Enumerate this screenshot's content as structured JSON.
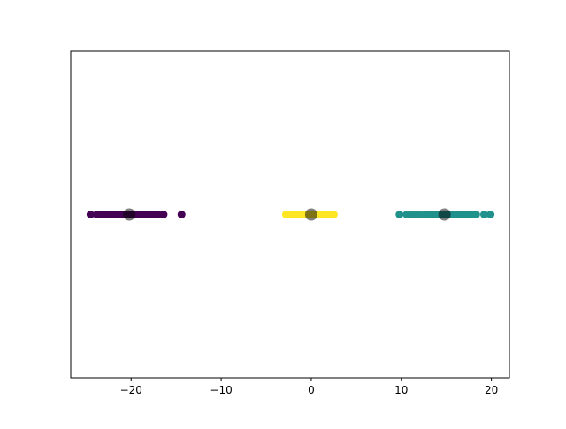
{
  "chart_data": {
    "type": "scatter",
    "title": "",
    "xlabel": "",
    "ylabel": "",
    "xlim": [
      -26.7,
      22.0
    ],
    "ylim": [
      -1,
      1
    ],
    "grid": false,
    "y_ticks_visible": false,
    "x_ticks": [
      -20,
      -10,
      0,
      10,
      20
    ],
    "x_tick_labels": [
      "−20",
      "−10",
      "0",
      "10",
      "20"
    ],
    "series": [
      {
        "color": "#440154",
        "y": 0,
        "x": [
          -24.5,
          -23.8,
          -23.4,
          -23.0,
          -22.8,
          -22.5,
          -22.2,
          -22.0,
          -21.8,
          -21.6,
          -21.4,
          -21.2,
          -21.0,
          -20.8,
          -20.6,
          -20.4,
          -20.2,
          -20.0,
          -19.8,
          -19.6,
          -19.4,
          -19.2,
          -19.0,
          -18.8,
          -18.6,
          -18.4,
          -18.1,
          -17.8,
          -17.4,
          -17.0,
          -16.4,
          -14.4
        ]
      },
      {
        "color": "#fde725",
        "y": 0,
        "x": [
          -2.8,
          -2.5,
          -2.2,
          -2.0,
          -1.8,
          -1.6,
          -1.4,
          -1.2,
          -1.0,
          -0.8,
          -0.6,
          -0.4,
          -0.2,
          0.0,
          0.2,
          0.4,
          0.6,
          0.8,
          1.0,
          1.2,
          1.4,
          1.6,
          1.8,
          2.0,
          2.2,
          2.5
        ]
      },
      {
        "color": "#21918c",
        "y": 0,
        "x": [
          9.8,
          10.6,
          11.2,
          11.6,
          12.1,
          12.7,
          13.0,
          13.3,
          13.6,
          13.9,
          14.2,
          14.5,
          14.8,
          15.1,
          15.4,
          15.7,
          16.0,
          16.3,
          16.6,
          16.9,
          17.2,
          17.6,
          18.0,
          18.3,
          19.2,
          19.9
        ]
      }
    ],
    "centers": {
      "color": "#000000",
      "opacity": 0.5,
      "points": [
        {
          "x": -20.2,
          "y": 0
        },
        {
          "x": 0.0,
          "y": 0
        },
        {
          "x": 14.8,
          "y": 0
        }
      ]
    }
  }
}
